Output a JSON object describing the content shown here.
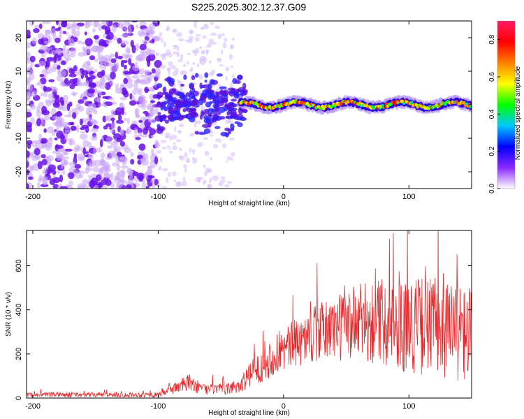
{
  "title": "S225.2025.302.12.37.G09",
  "chart_data": [
    {
      "type": "heatmap",
      "name": "spectrogram",
      "xlabel": "Height of straight line (km)",
      "ylabel": "Frequency (Hz)",
      "xlim": [
        -205,
        150
      ],
      "ylim": [
        -25,
        25
      ],
      "xticks": [
        -200,
        -100,
        0,
        100
      ],
      "yticks": [
        -20,
        -10,
        0,
        10,
        20
      ],
      "colorbar": {
        "label": "Normalized spectral amplitude",
        "range": [
          0.0,
          0.9
        ],
        "ticks": [
          0.0,
          0.2,
          0.4,
          0.6,
          0.8
        ],
        "colormap": [
          "#ffffff",
          "#8a28ff",
          "#0000ff",
          "#00c8ff",
          "#00ff00",
          "#ffff00",
          "#ff7f00",
          "#ff0000",
          "#ff1a66"
        ]
      },
      "ridge": {
        "x_start": -35,
        "x_end": 150,
        "center_frequency_hz": 0,
        "peak_amplitude": 0.8
      },
      "noise_region": {
        "x_start": -205,
        "x_end": -100,
        "frequency_range": [
          -25,
          25
        ]
      }
    },
    {
      "type": "line",
      "name": "snr",
      "xlabel": "Height of straight line (km)",
      "ylabel": "SNR (10 * v/v)",
      "xlim": [
        -205,
        150
      ],
      "ylim": [
        0,
        760
      ],
      "xticks": [
        -200,
        -100,
        0,
        100
      ],
      "yticks": [
        0,
        200,
        400,
        600
      ],
      "color": "#e8282b",
      "envelope": {
        "x": [
          -205,
          -100,
          -90,
          -75,
          -65,
          -45,
          -35,
          -25,
          -15,
          0,
          20,
          40,
          60,
          80,
          100,
          120,
          140,
          150
        ],
        "mean": [
          15,
          15,
          40,
          70,
          40,
          40,
          60,
          110,
          160,
          220,
          280,
          320,
          340,
          350,
          330,
          330,
          300,
          280
        ],
        "spread": [
          10,
          12,
          25,
          40,
          25,
          25,
          40,
          60,
          80,
          100,
          120,
          150,
          180,
          200,
          220,
          230,
          230,
          230
        ]
      }
    }
  ]
}
